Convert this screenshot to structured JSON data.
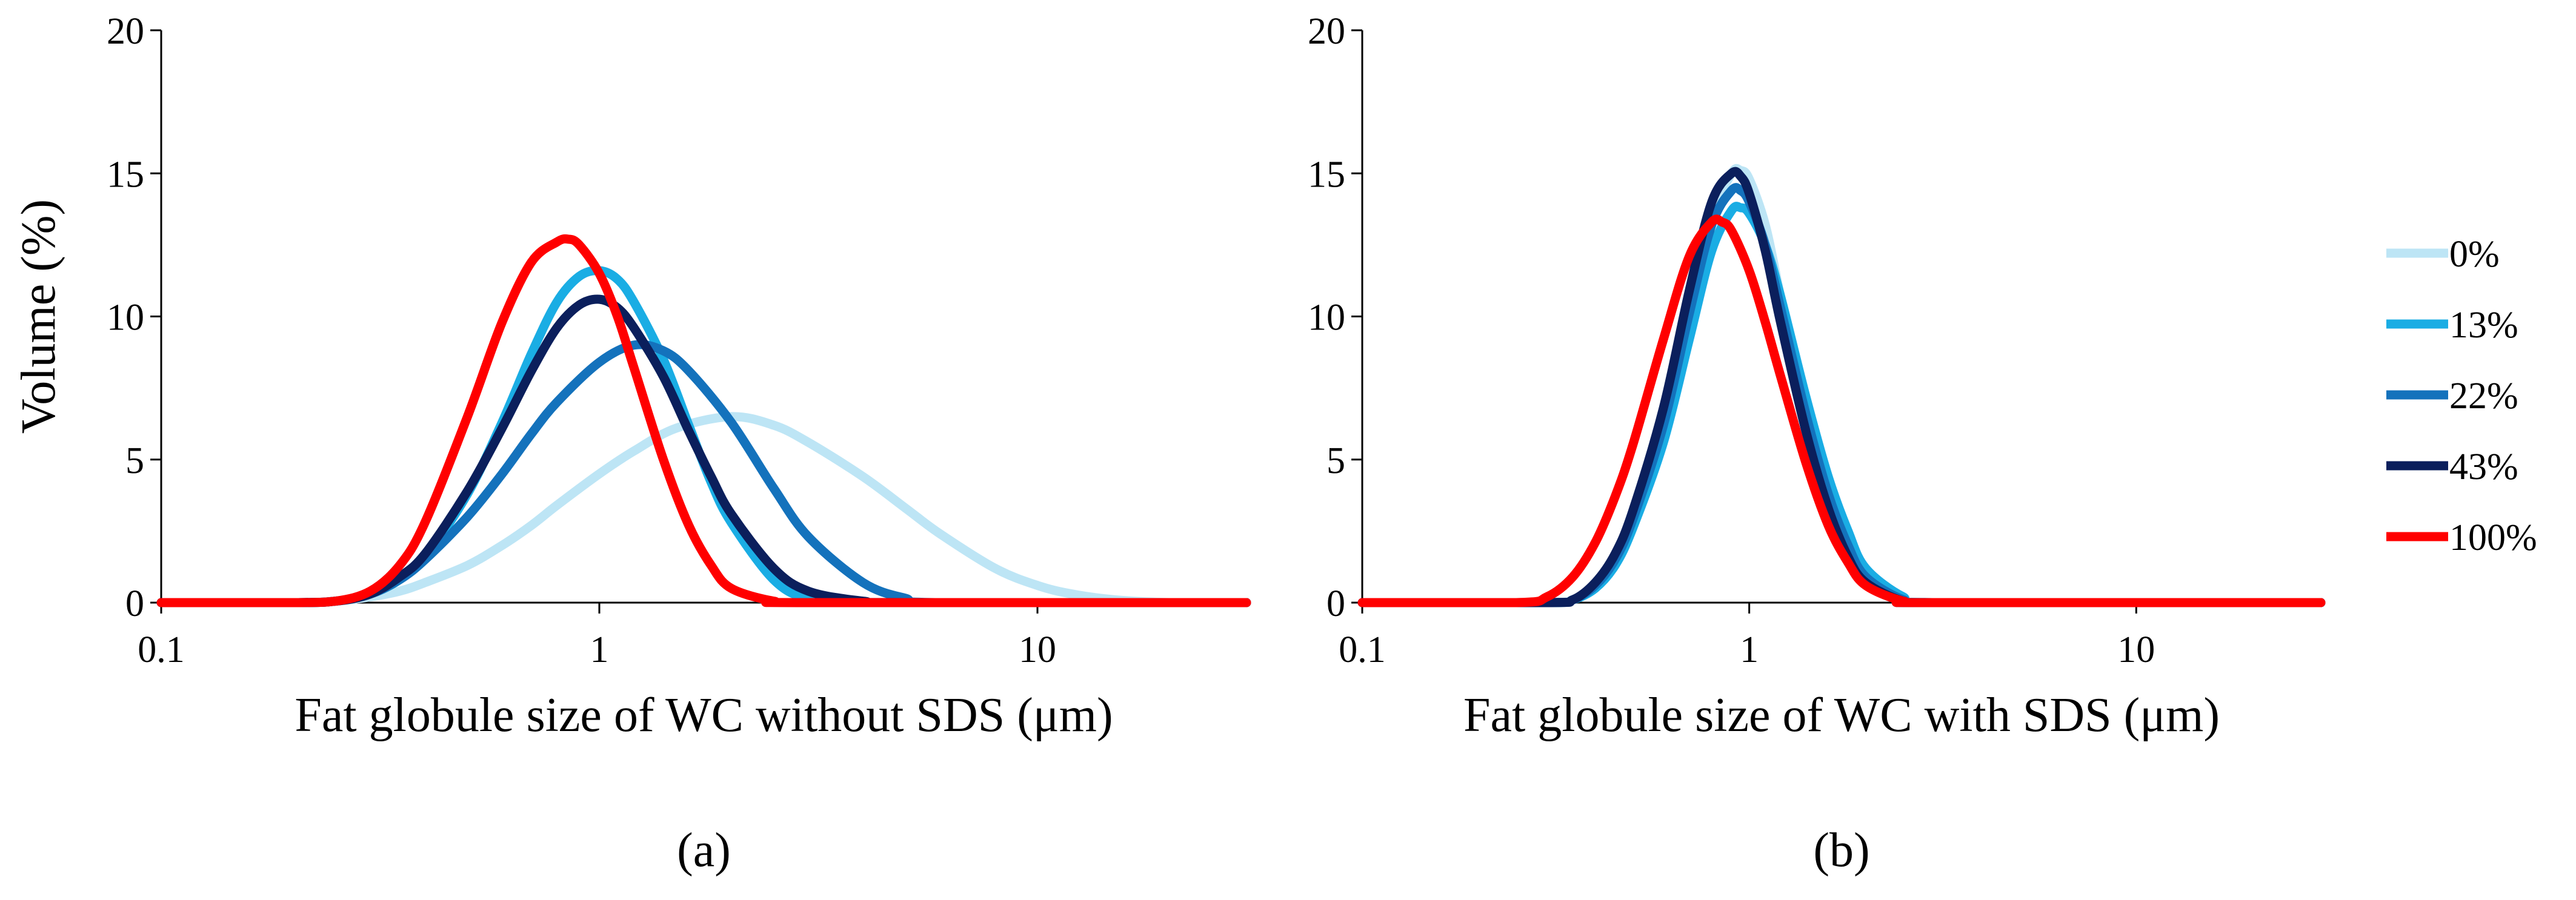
{
  "chart_data": [
    {
      "type": "line",
      "panel_label": "(a)",
      "xlabel": "Fat globule size of WC without SDS (μm)",
      "ylabel": "Volume (%)",
      "x_scale": "log",
      "xlim": [
        0.1,
        30
      ],
      "ylim": [
        0,
        20
      ],
      "x_ticks": [
        0.1,
        1,
        10
      ],
      "x_tick_labels": [
        "0.1",
        "1",
        "10"
      ],
      "y_ticks": [
        0,
        5,
        10,
        15,
        20
      ],
      "y_tick_labels": [
        "0",
        "5",
        "10",
        "15",
        "20"
      ],
      "series": [
        {
          "name": "0%",
          "color": "#BDE5F5",
          "x": [
            0.1,
            0.2,
            0.25,
            0.3,
            0.35,
            0.4,
            0.5,
            0.6,
            0.7,
            0.8,
            1.0,
            1.2,
            1.5,
            2.0,
            2.5,
            3.0,
            4.0,
            5.0,
            6.0,
            8.0,
            10.0,
            12.0,
            15.0,
            20.0,
            30.0
          ],
          "y": [
            0,
            0,
            0.05,
            0.2,
            0.4,
            0.7,
            1.3,
            2.0,
            2.7,
            3.4,
            4.5,
            5.3,
            6.1,
            6.5,
            6.2,
            5.6,
            4.4,
            3.3,
            2.4,
            1.2,
            0.6,
            0.3,
            0.1,
            0,
            0
          ]
        },
        {
          "name": "13%",
          "color": "#1AADE4",
          "x": [
            0.1,
            0.2,
            0.25,
            0.3,
            0.35,
            0.4,
            0.5,
            0.6,
            0.7,
            0.8,
            0.9,
            1.0,
            1.1,
            1.2,
            1.4,
            1.6,
            1.8,
            2.0,
            2.5,
            3.0,
            4.0,
            30.0
          ],
          "y": [
            0,
            0,
            0.05,
            0.3,
            0.8,
            1.6,
            3.8,
            6.3,
            8.7,
            10.5,
            11.4,
            11.6,
            11.3,
            10.5,
            8.5,
            6.2,
            4.2,
            2.8,
            0.8,
            0.15,
            0,
            0
          ]
        },
        {
          "name": "22%",
          "color": "#1472BC",
          "x": [
            0.1,
            0.2,
            0.25,
            0.3,
            0.35,
            0.4,
            0.5,
            0.6,
            0.7,
            0.8,
            1.0,
            1.2,
            1.4,
            1.6,
            2.0,
            2.5,
            3.0,
            4.0,
            5.0,
            6.0,
            30.0
          ],
          "y": [
            0,
            0,
            0.05,
            0.3,
            0.8,
            1.5,
            3.0,
            4.5,
            5.9,
            7.0,
            8.4,
            9.0,
            8.8,
            8.1,
            6.3,
            4.0,
            2.3,
            0.7,
            0.15,
            0,
            0
          ]
        },
        {
          "name": "43%",
          "color": "#0B1F5C",
          "x": [
            0.1,
            0.2,
            0.25,
            0.3,
            0.35,
            0.4,
            0.5,
            0.6,
            0.7,
            0.8,
            0.9,
            1.0,
            1.1,
            1.2,
            1.4,
            1.6,
            1.8,
            2.0,
            2.5,
            3.0,
            4.0,
            5.0,
            30.0
          ],
          "y": [
            0,
            0,
            0.05,
            0.3,
            0.9,
            1.7,
            3.9,
            6.1,
            8.1,
            9.6,
            10.4,
            10.6,
            10.3,
            9.6,
            7.9,
            6.0,
            4.4,
            3.1,
            1.2,
            0.4,
            0.05,
            0,
            0
          ]
        },
        {
          "name": "100%",
          "color": "#FF0000",
          "x": [
            0.1,
            0.2,
            0.25,
            0.3,
            0.35,
            0.4,
            0.5,
            0.6,
            0.7,
            0.8,
            0.85,
            0.9,
            1.0,
            1.1,
            1.2,
            1.4,
            1.6,
            1.8,
            2.0,
            2.5,
            3.0,
            30.0
          ],
          "y": [
            0,
            0,
            0.05,
            0.4,
            1.3,
            2.8,
            6.5,
            9.8,
            11.9,
            12.6,
            12.7,
            12.5,
            11.5,
            10.0,
            8.2,
            5.0,
            2.7,
            1.3,
            0.5,
            0.05,
            0,
            0
          ]
        }
      ]
    },
    {
      "type": "line",
      "panel_label": "(b)",
      "xlabel": "Fat globule size of WC with SDS (μm)",
      "x_scale": "log",
      "xlim": [
        0.1,
        30
      ],
      "ylim": [
        0,
        20
      ],
      "x_ticks": [
        0.1,
        1,
        10
      ],
      "x_tick_labels": [
        "0.1",
        "1",
        "10"
      ],
      "y_ticks": [
        0,
        5,
        10,
        15,
        20
      ],
      "y_tick_labels": [
        "0",
        "5",
        "10",
        "15",
        "20"
      ],
      "series": [
        {
          "name": "0%",
          "color": "#BDE5F5",
          "x": [
            0.1,
            0.3,
            0.35,
            0.4,
            0.45,
            0.5,
            0.6,
            0.7,
            0.8,
            0.9,
            0.95,
            1.0,
            1.1,
            1.2,
            1.4,
            1.6,
            1.8,
            2.0,
            2.5,
            3.0,
            30.0
          ],
          "y": [
            0,
            0,
            0.1,
            0.6,
            1.5,
            2.8,
            6.0,
            10.0,
            13.4,
            15.0,
            15.1,
            14.8,
            13.2,
            10.8,
            6.5,
            3.6,
            1.8,
            0.8,
            0.1,
            0,
            0
          ]
        },
        {
          "name": "13%",
          "color": "#1AADE4",
          "x": [
            0.1,
            0.3,
            0.35,
            0.4,
            0.45,
            0.5,
            0.6,
            0.7,
            0.8,
            0.9,
            0.95,
            1.0,
            1.1,
            1.2,
            1.4,
            1.6,
            1.8,
            2.0,
            2.5,
            3.0,
            30.0
          ],
          "y": [
            0,
            0,
            0.1,
            0.5,
            1.3,
            2.6,
            5.6,
            9.2,
            12.3,
            13.7,
            13.8,
            13.6,
            12.5,
            10.8,
            7.2,
            4.4,
            2.5,
            1.2,
            0.2,
            0,
            0
          ]
        },
        {
          "name": "22%",
          "color": "#1472BC",
          "x": [
            0.1,
            0.3,
            0.35,
            0.4,
            0.45,
            0.5,
            0.6,
            0.7,
            0.8,
            0.9,
            0.95,
            1.0,
            1.1,
            1.2,
            1.4,
            1.6,
            1.8,
            2.0,
            2.5,
            3.0,
            30.0
          ],
          "y": [
            0,
            0,
            0.1,
            0.6,
            1.5,
            2.9,
            6.2,
            10.1,
            13.2,
            14.4,
            14.4,
            14.0,
            12.5,
            10.4,
            6.6,
            3.8,
            2.0,
            0.9,
            0.1,
            0,
            0
          ]
        },
        {
          "name": "43%",
          "color": "#0B1F5C",
          "x": [
            0.1,
            0.3,
            0.35,
            0.4,
            0.45,
            0.5,
            0.6,
            0.7,
            0.8,
            0.9,
            0.95,
            1.0,
            1.1,
            1.2,
            1.4,
            1.6,
            1.8,
            2.0,
            2.5,
            3.0,
            30.0
          ],
          "y": [
            0,
            0,
            0.1,
            0.7,
            1.7,
            3.2,
            6.8,
            10.9,
            14.0,
            15.0,
            14.9,
            14.3,
            12.3,
            9.9,
            6.0,
            3.3,
            1.6,
            0.7,
            0.05,
            0,
            0
          ]
        },
        {
          "name": "100%",
          "color": "#FF0000",
          "x": [
            0.1,
            0.25,
            0.3,
            0.35,
            0.4,
            0.45,
            0.5,
            0.6,
            0.7,
            0.8,
            0.85,
            0.9,
            1.0,
            1.1,
            1.2,
            1.4,
            1.6,
            1.8,
            2.0,
            2.5,
            3.0,
            30.0
          ],
          "y": [
            0,
            0,
            0.2,
            0.9,
            2.1,
            3.7,
            5.5,
            9.2,
            12.1,
            13.3,
            13.3,
            13.0,
            11.6,
            9.8,
            8.0,
            4.9,
            2.7,
            1.4,
            0.6,
            0.05,
            0,
            0
          ]
        }
      ]
    }
  ],
  "legend": {
    "position": "right",
    "items": [
      {
        "label": "0%",
        "color": "#BDE5F5"
      },
      {
        "label": "13%",
        "color": "#1AADE4"
      },
      {
        "label": "22%",
        "color": "#1472BC"
      },
      {
        "label": "43%",
        "color": "#0B1F5C"
      },
      {
        "label": "100%",
        "color": "#FF0000"
      }
    ]
  }
}
